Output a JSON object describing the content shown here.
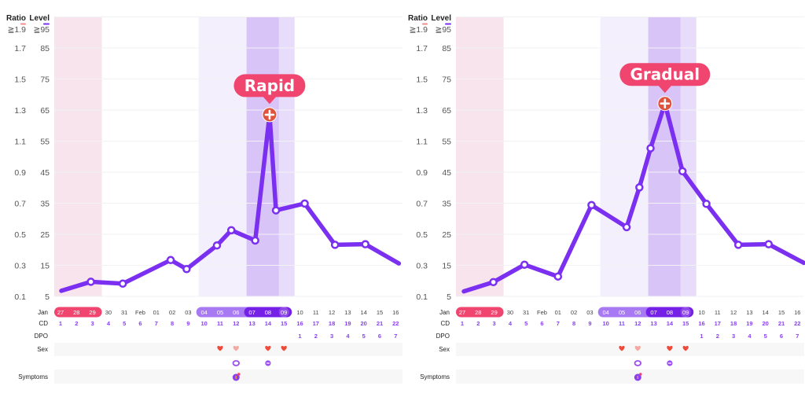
{
  "colors": {
    "line": "#7b2ff0",
    "menses_shade": "#f7e4ec",
    "fertile_shade": "#f3effd",
    "peak_shade": "#d9c4f8",
    "post_peak_shade": "#e8dcfb",
    "menses_pill": "#f0456f",
    "fertile_pill": "#a779f2",
    "peak_pill": "#7420e6",
    "callout": "#f0456f",
    "peak_marker": "#e0533d",
    "ratio_indicator": "#f58a8a",
    "level_indicator": "#7b2ff0",
    "row_band": "#f7f7f7",
    "purple_text": "#8a3ff0",
    "heart": "#f04a3a"
  },
  "axes": {
    "ratio_header": "Ratio",
    "level_header": "Level",
    "ratio_ticks": [
      "≧1.9",
      "1.7",
      "1.5",
      "1.3",
      "1.1",
      "0.9",
      "0.7",
      "0.5",
      "0.3",
      "0.1"
    ],
    "level_ticks": [
      "≧95",
      "85",
      "75",
      "65",
      "55",
      "45",
      "35",
      "25",
      "15",
      "5"
    ]
  },
  "calendar": {
    "month_label": "Jan",
    "cd_label": "CD",
    "dpo_label": "DPO",
    "sex_label": "Sex",
    "symptoms_label": "Symptoms",
    "dates": [
      "27",
      "28",
      "29",
      "30",
      "31",
      "Feb",
      "01",
      "02",
      "03",
      "04",
      "05",
      "06",
      "07",
      "08",
      "09",
      "10",
      "11",
      "12",
      "13",
      "14",
      "15",
      "16"
    ],
    "cd": [
      "1",
      "2",
      "3",
      "4",
      "5",
      "6",
      "7",
      "8",
      "9",
      "10",
      "11",
      "12",
      "13",
      "14",
      "15",
      "16",
      "17",
      "18",
      "19",
      "20",
      "21",
      "22"
    ],
    "dpo": [
      {
        "day": 16,
        "v": "1"
      },
      {
        "day": 17,
        "v": "2"
      },
      {
        "day": 18,
        "v": "3"
      },
      {
        "day": 19,
        "v": "4"
      },
      {
        "day": 20,
        "v": "5"
      },
      {
        "day": 21,
        "v": "6"
      },
      {
        "day": 22,
        "v": "7"
      }
    ],
    "menses_days": [
      1,
      3
    ],
    "fertile_days": [
      10,
      15
    ],
    "peak_days": [
      13,
      14
    ],
    "sex_markers": [
      {
        "day": 11,
        "type": "heart"
      },
      {
        "day": 12,
        "type": "heart-faded"
      },
      {
        "day": 14,
        "type": "heart"
      },
      {
        "day": 15,
        "type": "heart"
      }
    ],
    "test_markers": [
      {
        "day": 12,
        "type": "ring"
      },
      {
        "day": 14,
        "type": "dot-ring"
      }
    ],
    "symptom_markers": [
      {
        "day": 12,
        "type": "symptom"
      }
    ]
  },
  "chart_data": [
    {
      "type": "line",
      "title": "",
      "xlabel": "CD",
      "ylabel": "Level",
      "ylim": [
        5,
        95
      ],
      "secondary_ylim": [
        0.1,
        1.9
      ],
      "grid": true,
      "annotation": "Rapid",
      "peak_index": 8,
      "x": [
        1.05,
        2.9,
        4.9,
        7.9,
        8.9,
        10.8,
        11.7,
        13.2,
        14.1,
        14.5,
        16.3,
        18.2,
        20.1,
        22.2
      ],
      "y": [
        6.8,
        9.7,
        9.1,
        16.7,
        13.8,
        21.4,
        26.3,
        23,
        63.5,
        32.7,
        34.9,
        21.6,
        21.8,
        15.6
      ]
    },
    {
      "type": "line",
      "title": "",
      "xlabel": "CD",
      "ylabel": "Level",
      "ylim": [
        5,
        95
      ],
      "secondary_ylim": [
        0.1,
        1.9
      ],
      "grid": true,
      "annotation": "Gradual",
      "peak_index": 8,
      "x": [
        1.1,
        2.95,
        4.9,
        7.0,
        9.1,
        11.3,
        12.1,
        12.8,
        13.7,
        14.8,
        16.3,
        18.3,
        20.2,
        22.4
      ],
      "y": [
        6.6,
        9.6,
        15.2,
        11.4,
        34.4,
        27.3,
        40.1,
        52.7,
        67.1,
        45.3,
        34.8,
        21.6,
        21.8,
        15.8
      ]
    }
  ]
}
